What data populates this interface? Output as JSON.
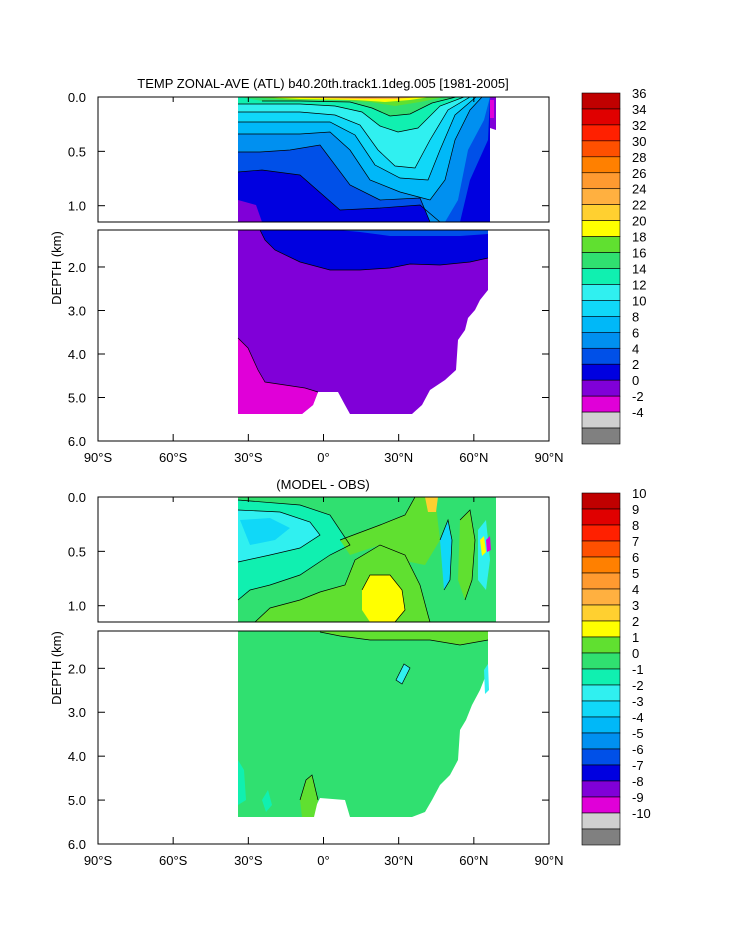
{
  "chart_data": [
    {
      "type": "heatmap",
      "title": "TEMP ZONAL-AVE (ATL) b40.20th.track1.1deg.005 [1981-2005]",
      "ylabel": "DEPTH (km)",
      "xlabel": "",
      "x_ticks": [
        "90°S",
        "60°S",
        "30°S",
        "0°",
        "30°N",
        "60°N",
        "90°N"
      ],
      "y_ticks_upper": [
        "0.0",
        "0.5",
        "1.0"
      ],
      "y_ticks_lower": [
        "2.0",
        "3.0",
        "4.0",
        "5.0",
        "6.0"
      ],
      "xlim": [
        -90,
        90
      ],
      "ylim_upper": [
        0,
        1.15
      ],
      "ylim_lower": [
        1.15,
        6.0
      ],
      "colorbar_levels": [
        "36",
        "34",
        "32",
        "30",
        "28",
        "26",
        "24",
        "22",
        "20",
        "18",
        "16",
        "14",
        "12",
        "10",
        "8",
        "6",
        "4",
        "2",
        "0",
        "-2",
        "-4"
      ],
      "colors": [
        "#c00000",
        "#e00000",
        "#ff2000",
        "#ff5000",
        "#ff8000",
        "#ff9a30",
        "#ffb040",
        "#ffd030",
        "#ffff00",
        "#60e030",
        "#30e070",
        "#10f0b0",
        "#30f0f0",
        "#10d8f8",
        "#00b8f8",
        "#0090f0",
        "#0050e8",
        "#0000e0",
        "#8000d8",
        "#e000d8",
        "#d0d0d0",
        "#808080"
      ]
    },
    {
      "type": "heatmap",
      "title": "(MODEL - OBS)",
      "ylabel": "DEPTH (km)",
      "xlabel": "",
      "x_ticks": [
        "90°S",
        "60°S",
        "30°S",
        "0°",
        "30°N",
        "60°N",
        "90°N"
      ],
      "y_ticks_upper": [
        "0.0",
        "0.5",
        "1.0"
      ],
      "y_ticks_lower": [
        "2.0",
        "3.0",
        "4.0",
        "5.0",
        "6.0"
      ],
      "xlim": [
        -90,
        90
      ],
      "ylim_upper": [
        0,
        1.15
      ],
      "ylim_lower": [
        1.15,
        6.0
      ],
      "colorbar_levels": [
        "10",
        "9",
        "8",
        "7",
        "6",
        "5",
        "4",
        "3",
        "2",
        "1",
        "0",
        "-1",
        "-2",
        "-3",
        "-4",
        "-5",
        "-6",
        "-7",
        "-8",
        "-9",
        "-10"
      ],
      "colors": [
        "#c00000",
        "#e00000",
        "#ff2000",
        "#ff5000",
        "#ff8000",
        "#ff9a30",
        "#ffb040",
        "#ffd030",
        "#ffff00",
        "#60e030",
        "#30e070",
        "#10f0b0",
        "#30f0f0",
        "#10d8f8",
        "#00b8f8",
        "#0090f0",
        "#0050e8",
        "#0000e0",
        "#8000d8",
        "#e000d8",
        "#d0d0d0",
        "#808080"
      ]
    }
  ]
}
